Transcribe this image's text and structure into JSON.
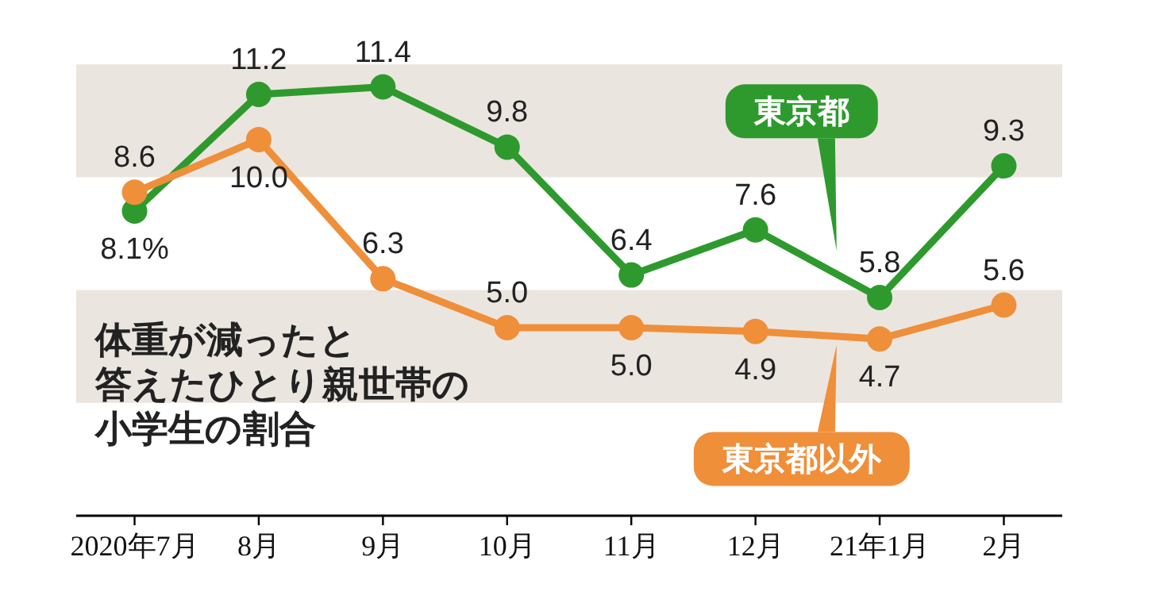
{
  "chart_data": {
    "type": "line",
    "title": "体重が減ったと答えたひとり親世帯の小学生の割合",
    "categories": [
      "2020年7月",
      "8月",
      "9月",
      "10月",
      "11月",
      "12月",
      "21年1月",
      "2月"
    ],
    "series": [
      {
        "name": "東京都",
        "color": "#2e9a2e",
        "values": [
          8.1,
          11.2,
          11.4,
          9.8,
          6.4,
          7.6,
          5.8,
          9.3
        ],
        "value_labels": [
          "8.1%",
          "11.2",
          "11.4",
          "9.8",
          "6.4",
          "7.6",
          "5.8",
          "9.3"
        ]
      },
      {
        "name": "東京都以外",
        "color": "#ef8f3a",
        "values": [
          8.6,
          10.0,
          6.3,
          5.0,
          5.0,
          4.9,
          4.7,
          5.6
        ],
        "value_labels": [
          "8.6",
          "10.0",
          "6.3",
          "5.0",
          "5.0",
          "4.9",
          "4.7",
          "5.6"
        ]
      }
    ],
    "marker": "circle",
    "line_style": "solid",
    "bands": [
      {
        "axis": "y",
        "from": 9,
        "to": 12,
        "color": "#ebe5e0"
      },
      {
        "axis": "y",
        "from": 3,
        "to": 6,
        "color": "#ebe5e0"
      }
    ]
  }
}
